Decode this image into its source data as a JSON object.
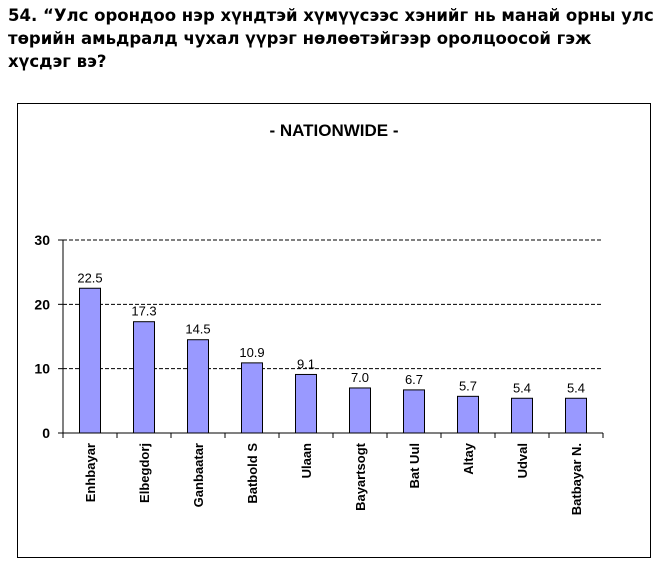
{
  "question": {
    "text": "54. “Улс орондоо нэр хүндтэй хүмүүсээс хэнийг нь манай орны улс төрийн амьдралд чухал үүрэг нөлөөтэйгээр оролцоосой гэж хүсдэг вэ?"
  },
  "chart_data": {
    "type": "bar",
    "title": "- NATIONWIDE -",
    "categories": [
      "Enhbayar",
      "Elbegdorj",
      "Ganbaatar",
      "Batbold S",
      "Ulaan",
      "Bayartsogt",
      "Bat Uul",
      "Altay",
      "Udval",
      "Batbayar N."
    ],
    "values": [
      22.5,
      17.3,
      14.5,
      10.9,
      9.1,
      7.0,
      6.7,
      5.7,
      5.4,
      5.4
    ],
    "value_labels": [
      "22.5",
      "17.3",
      "14.5",
      "10.9",
      "9.1",
      "7.0",
      "6.7",
      "5.7",
      "5.4",
      "5.4"
    ],
    "yticks": [
      "0",
      "10",
      "20",
      "30"
    ],
    "ylim": [
      0,
      30
    ],
    "xlabel": "",
    "ylabel": "",
    "grid": true,
    "legend": "none",
    "colors": {
      "bar_fill": "#9999FF",
      "bar_stroke": "#000000",
      "grid": "#000000"
    }
  }
}
